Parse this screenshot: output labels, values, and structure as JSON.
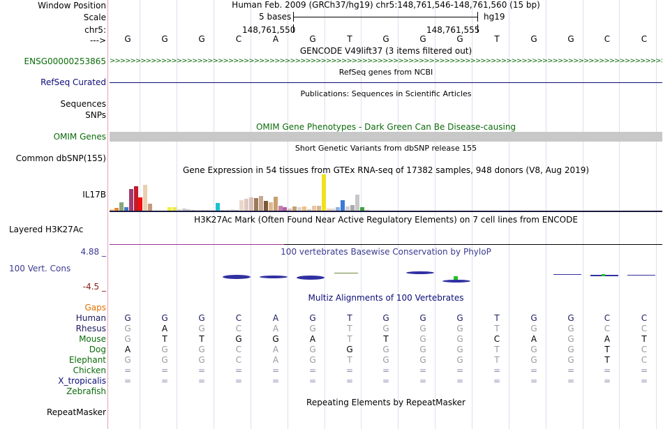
{
  "position": {
    "labels": {
      "window_position": "Window Position",
      "scale": "Scale",
      "chrom": "chr5:",
      "strand": "--->"
    },
    "assembly_title": "Human Feb. 2009 (GRCh37/hg19)   chr5:148,761,546-148,761,560 (15 bp)",
    "scale_text": "5 bases",
    "assembly_short": "hg19",
    "coord_left": "148,761,550",
    "coord_right": "148,761,555"
  },
  "sequence": [
    "G",
    "G",
    "G",
    "C",
    "A",
    "G",
    "T",
    "G",
    "G",
    "G",
    "T",
    "G",
    "G",
    "C",
    "C"
  ],
  "tracks": {
    "gencode": {
      "title": "GENCODE V49lift37 (3 items filtered out)",
      "label": "ENSG00000253865",
      "color": "#0a6b0a"
    },
    "refseq": {
      "title": "RefSeq genes from NCBI",
      "label": "RefSeq Curated",
      "color": "#0c0c78"
    },
    "publications": {
      "title": "Publications: Sequences in Scientific Articles",
      "label_a": "Sequences",
      "label_b": "SNPs"
    },
    "omim": {
      "title": "OMIM Gene Phenotypes - Dark Green Can Be Disease-causing",
      "label": "OMIM Genes",
      "color": "#0a6b0a",
      "bar_color": "#c8c8c8"
    },
    "dbsnp": {
      "title": "Short Genetic Variants from dbSNP release 155",
      "label": "Common dbSNP(155)"
    },
    "gtex": {
      "title": "Gene Expression in 54 tissues from GTEx RNA-seq of 17382 samples, 948 donors (V8, Aug 2019)",
      "label": "IL17B",
      "values": [
        2,
        4,
        12,
        5,
        30,
        34,
        18,
        36,
        10,
        0,
        0,
        0,
        5,
        5,
        2,
        3,
        2,
        1,
        1,
        1,
        1,
        1,
        11,
        1,
        1,
        2,
        1,
        14,
        16,
        18,
        17,
        20,
        13,
        12,
        19,
        7,
        5,
        3,
        6,
        5,
        6,
        2,
        7,
        7,
        50,
        3,
        3,
        5,
        14,
        6,
        8,
        22,
        5,
        2
      ],
      "colors": [
        "#f6c78a",
        "#e78a3b",
        "#8aa67a",
        "#3f79c9",
        "#a23b6e",
        "#c21b2a",
        "#f20f0f",
        "#e8d0b0",
        "#c49a7a",
        "#e8d0d0",
        "#d8d8d8",
        "#e0e0e0",
        "#f0f040",
        "#e8e850",
        "#d8d8d8",
        "#c8c8c8",
        "#c8c8c8",
        "#b8b8b8",
        "#d8d8d8",
        "#c8c8c8",
        "#c8c8c8",
        "#d8d8d8",
        "#20c0d0",
        "#c8c8c8",
        "#c8c8c8",
        "#d8d8d8",
        "#c8c8c8",
        "#e8d8c8",
        "#e0c8c0",
        "#d8c0b8",
        "#9a7a5a",
        "#c8a890",
        "#7a5a3a",
        "#e0b890",
        "#c8a070",
        "#c080b0",
        "#b860a0",
        "#d8c0c0",
        "#c8a070",
        "#d8d8d8",
        "#f0c080",
        "#c8c8c8",
        "#e8c8a0",
        "#d8b890",
        "#f0e020",
        "#f0d0b0",
        "#d8d8d8",
        "#8ab0e0",
        "#3a7ad8",
        "#d0d0d0",
        "#a8a8a8",
        "#c8c8c8",
        "#40a040",
        "#e0e0e0"
      ]
    },
    "h3k27ac": {
      "title": "H3K27Ac Mark (Often Found Near Active Regulatory Elements) on 7 cell lines from ENCODE",
      "label": "Layered H3K27Ac"
    },
    "cons": {
      "title": "100 vertebrates Basewise Conservation by PhyloP",
      "label": "100 Vert. Cons",
      "max": "4.88 _",
      "min": "-4.5 _",
      "color": "#3a3a90",
      "neg_color": "#8a1a1a"
    },
    "multiz": {
      "title": "Multiz Alignments of 100 Vertebrates",
      "gaps_label": "Gaps",
      "gaps_color": "#e07000",
      "species": [
        {
          "name": "Human",
          "color": "#1a1a60",
          "bases": [
            "G",
            "G",
            "G",
            "C",
            "A",
            "G",
            "T",
            "G",
            "G",
            "G",
            "T",
            "G",
            "G",
            "C",
            "C"
          ]
        },
        {
          "name": "Rhesus",
          "color": "#1a1a60",
          "bases": [
            "G",
            "A",
            "G",
            "C",
            "A",
            "G",
            "T",
            "G",
            "G",
            "G",
            "T",
            "G",
            "G",
            "C",
            "C"
          ]
        },
        {
          "name": "Mouse",
          "color": "#0a6b0a",
          "bases": [
            "G",
            "T",
            "T",
            "G",
            "G",
            "A",
            "T",
            "T",
            "G",
            "G",
            "C",
            "A",
            "G",
            "A",
            "T"
          ]
        },
        {
          "name": "Dog",
          "color": "#0a6b0a",
          "bases": [
            "A",
            "G",
            "G",
            "C",
            "A",
            "G",
            "G",
            "G",
            "G",
            "G",
            "T",
            "G",
            "G",
            "T",
            "C"
          ]
        },
        {
          "name": "Elephant",
          "color": "#0a6b0a",
          "bases": [
            "G",
            "G",
            "G",
            "C",
            "A",
            "G",
            "T",
            "G",
            "G",
            "G",
            "T",
            "G",
            "G",
            "T",
            "C"
          ]
        },
        {
          "name": "Chicken",
          "color": "#0a6b0a",
          "bases": [
            "=",
            "=",
            "=",
            "=",
            "=",
            "=",
            "=",
            "=",
            "=",
            "=",
            "=",
            "=",
            "=",
            "=",
            "="
          ]
        },
        {
          "name": "X_tropicalis",
          "color": "#0c0c78",
          "bases": [
            "=",
            "=",
            "=",
            "=",
            "=",
            "=",
            "=",
            "=",
            "=",
            "=",
            "=",
            "=",
            "=",
            "=",
            "="
          ]
        },
        {
          "name": "Zebrafish",
          "color": "#0a6b0a",
          "bases": [
            "",
            "",
            "",
            "",
            "",
            "",
            "",
            "",
            "",
            "",
            "",
            "",
            "",
            "",
            ""
          ]
        }
      ]
    },
    "repeatmasker": {
      "title": "Repeating Elements by RepeatMasker",
      "label": "RepeatMasker"
    }
  }
}
